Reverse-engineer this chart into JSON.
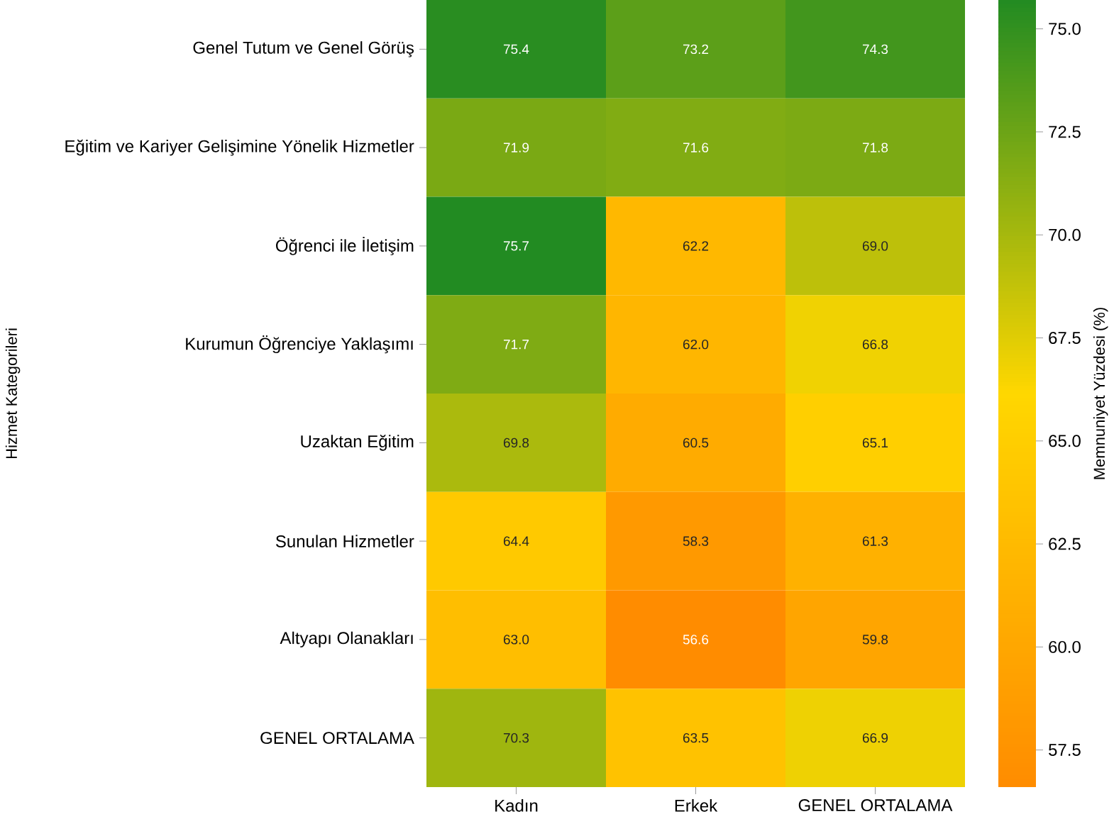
{
  "chart_data": {
    "type": "heatmap",
    "ylabel": "Hizmet Kategorileri",
    "clabel": "Memnuniyet Yüzdesi (%)",
    "categories": [
      "Kadın",
      "Erkek",
      "GENEL ORTALAMA"
    ],
    "y_categories": [
      "Genel Tutum ve Genel Görüş",
      "Eğitim ve Kariyer Gelişimine Yönelik Hizmetler",
      "Öğrenci ile İletişim",
      "Kurumun Öğrenciye Yaklaşımı",
      "Uzaktan Eğitim",
      "Sunulan Hizmetler",
      "Altyapı Olanakları",
      "GENEL ORTALAMA"
    ],
    "cells": [
      [
        75.4,
        73.2,
        74.3
      ],
      [
        71.9,
        71.6,
        71.8
      ],
      [
        75.7,
        62.2,
        69.0
      ],
      [
        71.7,
        62.0,
        66.8
      ],
      [
        69.8,
        60.5,
        65.1
      ],
      [
        64.4,
        58.3,
        61.3
      ],
      [
        63.0,
        56.6,
        59.8
      ],
      [
        70.3,
        63.5,
        66.9
      ]
    ],
    "cell_labels": [
      [
        "75.4",
        "73.2",
        "74.3"
      ],
      [
        "71.9",
        "71.6",
        "71.8"
      ],
      [
        "75.7",
        "62.2",
        "69.0"
      ],
      [
        "71.7",
        "62.0",
        "66.8"
      ],
      [
        "69.8",
        "60.5",
        "65.1"
      ],
      [
        "64.4",
        "58.3",
        "61.3"
      ],
      [
        "63.0",
        "56.6",
        "59.8"
      ],
      [
        "70.3",
        "63.5",
        "66.9"
      ]
    ],
    "clim": [
      56.6,
      75.7
    ],
    "cticks": [
      {
        "value": 57.5,
        "label": "57.5"
      },
      {
        "value": 60,
        "label": "60.0"
      },
      {
        "value": 62.5,
        "label": "62.5"
      },
      {
        "value": 65,
        "label": "65.0"
      },
      {
        "value": 67.5,
        "label": "67.5"
      },
      {
        "value": 70,
        "label": "70.0"
      },
      {
        "value": 72.5,
        "label": "72.5"
      },
      {
        "value": 75,
        "label": "75.0"
      }
    ]
  }
}
